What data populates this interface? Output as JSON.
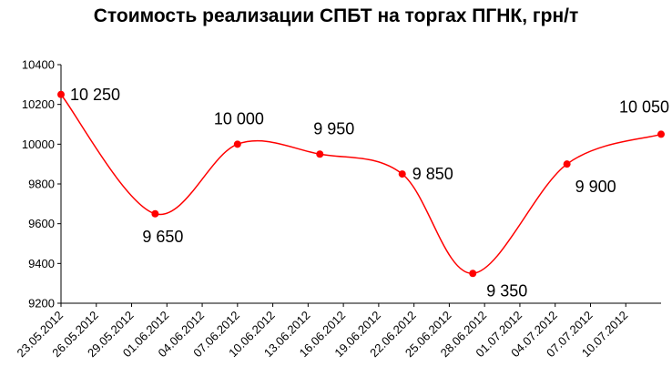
{
  "chart_data": {
    "type": "line",
    "title": "Стоимость реализации СПБТ на торгах ПГНК, грн/т",
    "xlabel": "",
    "ylabel": "",
    "ylim": [
      9200,
      10400
    ],
    "yticks": [
      "9200",
      "9400",
      "9600",
      "9800",
      "10000",
      "10200",
      "10400"
    ],
    "xlim": [
      "23.05.2012",
      "13.07.2012"
    ],
    "xticks": [
      "23.05.2012",
      "26.05.2012",
      "29.05.2012",
      "01.06.2012",
      "04.06.2012",
      "07.06.2012",
      "10.06.2012",
      "13.06.2012",
      "16.06.2012",
      "19.06.2012",
      "22.06.2012",
      "25.06.2012",
      "28.06.2012",
      "01.07.2012",
      "04.07.2012",
      "07.07.2012",
      "10.07.2012"
    ],
    "grid": false,
    "legend": "none",
    "line_color": "#ff0000",
    "series": [
      {
        "x": [
          "23.05.2012",
          "31.05.2012",
          "07.06.2012",
          "14.06.2012",
          "21.06.2012",
          "27.06.2012",
          "05.07.2012",
          "13.07.2012"
        ],
        "values": [
          10250,
          9650,
          10000,
          9950,
          9850,
          9350,
          9900,
          10050
        ],
        "labels": [
          "10 250",
          "9 650",
          "10 000",
          "9 950",
          "9 850",
          "9 350",
          "9 900",
          "10 050"
        ]
      }
    ]
  }
}
